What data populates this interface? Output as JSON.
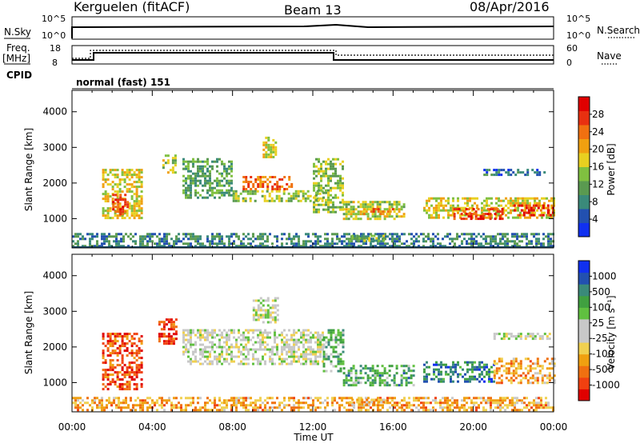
{
  "header": {
    "station": "Kerguelen (fitACF)",
    "beam": "Beam 13",
    "date": "08/Apr/2016"
  },
  "noise_panel": {
    "left_label": "N.Sky",
    "right_label": "N.Search",
    "left_ticks": [
      "10^5",
      "10^0"
    ],
    "right_ticks": [
      "10^5",
      "10^0"
    ]
  },
  "freq_panel": {
    "left_label_1": "Freq.",
    "left_label_2": "[MHz]",
    "left_ticks": [
      "18",
      "8"
    ],
    "right_label": "Nave",
    "right_ticks": [
      "60",
      "0"
    ],
    "cpid_label": "CPID",
    "cpid_text": "normal (fast) 151"
  },
  "colors": {
    "power_scale": [
      "#1030f0",
      "#2250b0",
      "#3a8a7a",
      "#5a9a50",
      "#80c040",
      "#e8d020",
      "#f0a010",
      "#f07010",
      "#e83010",
      "#e00000"
    ],
    "velocity_scale": [
      "#e00000",
      "#f04010",
      "#f07010",
      "#f0a010",
      "#f0d050",
      "#c8c8c8",
      "#c8c8c8",
      "#60c040",
      "#40a040",
      "#3a8a7a",
      "#2250b0",
      "#1030f0"
    ]
  },
  "chart_data": [
    {
      "type": "heatmap",
      "name": "power",
      "ylabel": "Slant Range [km]",
      "yticks": [
        "1000",
        "2000",
        "3000",
        "4000"
      ],
      "ylim": [
        180,
        4600
      ],
      "xticks": [
        "00:00",
        "04:00",
        "08:00",
        "12:00",
        "16:00",
        "20:00",
        "00:00"
      ],
      "xlim_hours": [
        0,
        24
      ],
      "colorbar_label": "Power [dB]",
      "colorbar_ticks": [
        "4",
        "8",
        "12",
        "16",
        "20",
        "24",
        "28"
      ],
      "colorbar_range": [
        0,
        30
      ],
      "regions": [
        {
          "t0": 0.0,
          "t1": 24.0,
          "r0": 250,
          "r1": 600,
          "level": 0.25
        },
        {
          "t0": 1.5,
          "t1": 3.5,
          "r0": 1000,
          "r1": 2400,
          "level": 0.55
        },
        {
          "t0": 2.0,
          "t1": 2.8,
          "r0": 1100,
          "r1": 1700,
          "level": 0.85
        },
        {
          "t0": 4.5,
          "t1": 5.2,
          "r0": 2300,
          "r1": 2800,
          "level": 0.5
        },
        {
          "t0": 5.5,
          "t1": 8.0,
          "r0": 1600,
          "r1": 2700,
          "level": 0.35
        },
        {
          "t0": 8.0,
          "t1": 12.5,
          "r0": 1500,
          "r1": 1800,
          "level": 0.45
        },
        {
          "t0": 8.5,
          "t1": 11.0,
          "r0": 1800,
          "r1": 2200,
          "level": 0.75
        },
        {
          "t0": 9.5,
          "t1": 10.2,
          "r0": 2700,
          "r1": 3300,
          "level": 0.55
        },
        {
          "t0": 12.0,
          "t1": 13.5,
          "r0": 1200,
          "r1": 2700,
          "level": 0.45
        },
        {
          "t0": 13.5,
          "t1": 16.5,
          "r0": 1000,
          "r1": 1500,
          "level": 0.5
        },
        {
          "t0": 14.5,
          "t1": 16.0,
          "r0": 1100,
          "r1": 1300,
          "level": 0.7
        },
        {
          "t0": 13.8,
          "t1": 15.5,
          "r0": 350,
          "r1": 550,
          "level": 0.4
        },
        {
          "t0": 17.5,
          "t1": 24.0,
          "r0": 1000,
          "r1": 1600,
          "level": 0.55
        },
        {
          "t0": 19.0,
          "t1": 21.5,
          "r0": 1000,
          "r1": 1300,
          "level": 0.85
        },
        {
          "t0": 22.0,
          "t1": 24.0,
          "r0": 1100,
          "r1": 1400,
          "level": 0.9
        },
        {
          "t0": 20.5,
          "t1": 23.5,
          "r0": 2200,
          "r1": 2400,
          "level": 0.2
        }
      ]
    },
    {
      "type": "heatmap",
      "name": "velocity",
      "ylabel": "Slant Range [km]",
      "yticks": [
        "1000",
        "2000",
        "3000",
        "4000"
      ],
      "ylim": [
        180,
        4600
      ],
      "xticks": [
        "00:00",
        "04:00",
        "08:00",
        "12:00",
        "16:00",
        "20:00",
        "00:00"
      ],
      "xlim_hours": [
        0,
        24
      ],
      "xlabel": "Time UT",
      "colorbar_label": "Velocity [m s⁻¹]",
      "colorbar_ticks": [
        "-1000",
        "-500",
        "-100",
        "-25",
        "25",
        "100",
        "500",
        "1000"
      ],
      "regions": [
        {
          "t0": 0.0,
          "t1": 24.0,
          "r0": 250,
          "r1": 600,
          "level": 0.3
        },
        {
          "t0": 1.5,
          "t1": 3.5,
          "r0": 800,
          "r1": 2400,
          "level": 0.15
        },
        {
          "t0": 4.3,
          "t1": 5.2,
          "r0": 2100,
          "r1": 2800,
          "level": 0.12
        },
        {
          "t0": 5.5,
          "t1": 12.5,
          "r0": 1500,
          "r1": 2500,
          "level": 0.5
        },
        {
          "t0": 9.0,
          "t1": 10.3,
          "r0": 2700,
          "r1": 3400,
          "level": 0.5
        },
        {
          "t0": 12.5,
          "t1": 13.5,
          "r0": 1300,
          "r1": 2500,
          "level": 0.65
        },
        {
          "t0": 13.5,
          "t1": 17.0,
          "r0": 900,
          "r1": 1500,
          "level": 0.7
        },
        {
          "t0": 13.8,
          "t1": 15.5,
          "r0": 350,
          "r1": 550,
          "level": 0.35
        },
        {
          "t0": 17.5,
          "t1": 21.0,
          "r0": 1000,
          "r1": 1600,
          "level": 0.8
        },
        {
          "t0": 21.0,
          "t1": 24.0,
          "r0": 1000,
          "r1": 1700,
          "level": 0.3
        },
        {
          "t0": 21.0,
          "t1": 23.8,
          "r0": 2200,
          "r1": 2400,
          "level": 0.5
        }
      ]
    }
  ]
}
